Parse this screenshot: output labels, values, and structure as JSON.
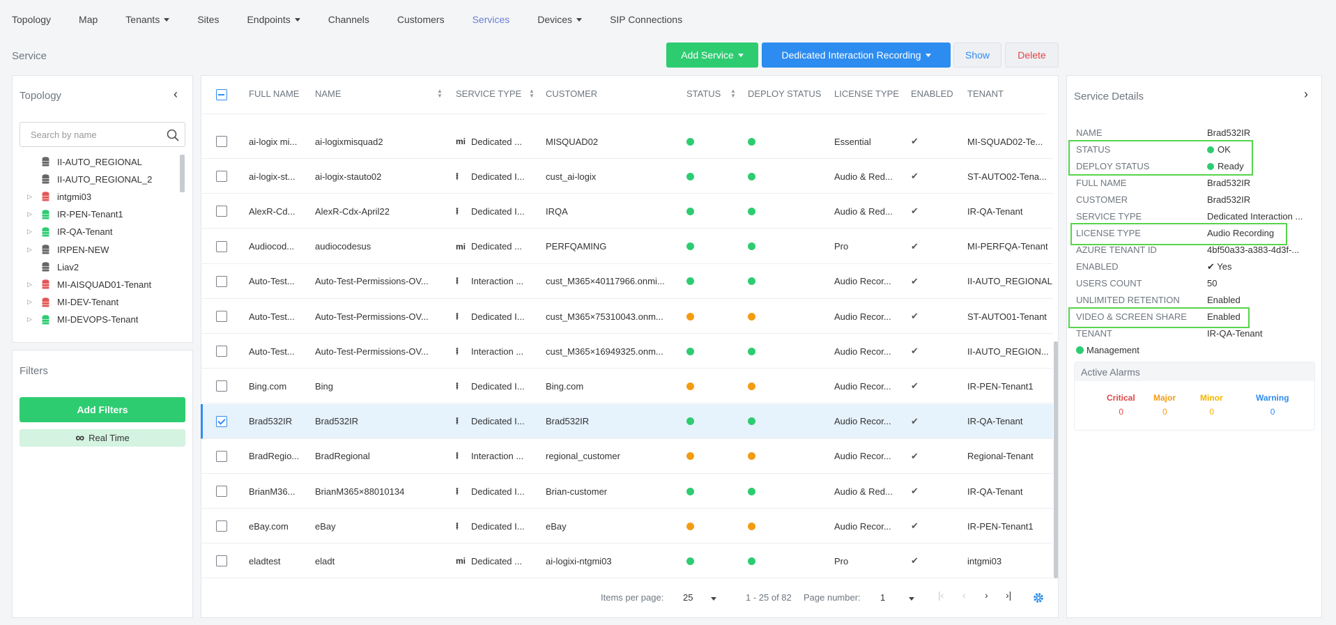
{
  "nav": {
    "items": [
      {
        "label": "Topology",
        "dropdown": false
      },
      {
        "label": "Map",
        "dropdown": false
      },
      {
        "label": "Tenants",
        "dropdown": true
      },
      {
        "label": "Sites",
        "dropdown": false
      },
      {
        "label": "Endpoints",
        "dropdown": true
      },
      {
        "label": "Channels",
        "dropdown": false
      },
      {
        "label": "Customers",
        "dropdown": false
      },
      {
        "label": "Services",
        "dropdown": false,
        "active": true
      },
      {
        "label": "Devices",
        "dropdown": true
      },
      {
        "label": "SIP Connections",
        "dropdown": false
      }
    ]
  },
  "page": {
    "title": "Service"
  },
  "toolbar": {
    "add_service": "Add Service",
    "interaction_recording": "Dedicated Interaction Recording",
    "show": "Show",
    "delete": "Delete"
  },
  "topology": {
    "title": "Topology",
    "search_placeholder": "Search by name",
    "items": [
      {
        "label": "II-AUTO_REGIONAL",
        "color": "#666666",
        "expandable": false
      },
      {
        "label": "II-AUTO_REGIONAL_2",
        "color": "#666666",
        "expandable": false
      },
      {
        "label": "intgmi03",
        "color": "#e45656",
        "expandable": true
      },
      {
        "label": "IR-PEN-Tenant1",
        "color": "#2ecc71",
        "expandable": true
      },
      {
        "label": "IR-QA-Tenant",
        "color": "#2ecc71",
        "expandable": true
      },
      {
        "label": "IRPEN-NEW",
        "color": "#666666",
        "expandable": true
      },
      {
        "label": "Liav2",
        "color": "#666666",
        "expandable": false
      },
      {
        "label": "MI-AISQUAD01-Tenant",
        "color": "#e45656",
        "expandable": true
      },
      {
        "label": "MI-DEV-Tenant",
        "color": "#e45656",
        "expandable": true
      },
      {
        "label": "MI-DEVOPS-Tenant",
        "color": "#2ecc71",
        "expandable": true
      }
    ]
  },
  "filters": {
    "title": "Filters",
    "add_filters": "Add Filters",
    "real_time": "Real Time"
  },
  "table": {
    "columns": [
      "FULL NAME",
      "NAME",
      "SERVICE TYPE",
      "CUSTOMER",
      "STATUS",
      "DEPLOY STATUS",
      "LICENSE TYPE",
      "ENABLED",
      "TENANT"
    ],
    "rows": [
      {
        "full_name": "ai-logix mi...",
        "name": "ai-logixmisquad2",
        "icon": "mi",
        "service_type": "Dedicated ...",
        "customer": "MISQUAD02",
        "status": "#2ecc71",
        "deploy": "#2ecc71",
        "license": "Essential",
        "enabled": "✔",
        "tenant": "MI-SQUAD02-Te...",
        "selected": false
      },
      {
        "full_name": "ai-logix-st...",
        "name": "ai-logix-stauto02",
        "icon": "wave",
        "service_type": "Dedicated I...",
        "customer": "cust_ai-logix",
        "status": "#2ecc71",
        "deploy": "#2ecc71",
        "license": "Audio & Red...",
        "enabled": "✔",
        "tenant": "ST-AUTO02-Tena...",
        "selected": false
      },
      {
        "full_name": "AlexR-Cd...",
        "name": "AlexR-Cdx-April22",
        "icon": "wave",
        "service_type": "Dedicated I...",
        "customer": "IRQA",
        "status": "#2ecc71",
        "deploy": "#2ecc71",
        "license": "Audio & Red...",
        "enabled": "✔",
        "tenant": "IR-QA-Tenant",
        "selected": false
      },
      {
        "full_name": "Audiocod...",
        "name": "audiocodesus",
        "icon": "mi",
        "service_type": "Dedicated ...",
        "customer": "PERFQAMING",
        "status": "#2ecc71",
        "deploy": "#2ecc71",
        "license": "Pro",
        "enabled": "✔",
        "tenant": "MI-PERFQA-Tenant",
        "selected": false
      },
      {
        "full_name": "Auto-Test...",
        "name": "Auto-Test-Permissions-OV...",
        "icon": "wave",
        "service_type": "Interaction ...",
        "customer": "cust_M365×40117966.onmi...",
        "status": "#2ecc71",
        "deploy": "#2ecc71",
        "license": "Audio Recor...",
        "enabled": "✔",
        "tenant": "II-AUTO_REGIONAL",
        "selected": false
      },
      {
        "full_name": "Auto-Test...",
        "name": "Auto-Test-Permissions-OV...",
        "icon": "wave",
        "service_type": "Dedicated I...",
        "customer": "cust_M365×75310043.onm...",
        "status": "#f39c12",
        "deploy": "#f39c12",
        "license": "Audio Recor...",
        "enabled": "✔",
        "tenant": "ST-AUTO01-Tenant",
        "selected": false
      },
      {
        "full_name": "Auto-Test...",
        "name": "Auto-Test-Permissions-OV...",
        "icon": "wave",
        "service_type": "Interaction ...",
        "customer": "cust_M365×16949325.onm...",
        "status": "#2ecc71",
        "deploy": "#2ecc71",
        "license": "Audio Recor...",
        "enabled": "✔",
        "tenant": "II-AUTO_REGION...",
        "selected": false
      },
      {
        "full_name": "Bing.com",
        "name": "Bing",
        "icon": "wave",
        "service_type": "Dedicated I...",
        "customer": "Bing.com",
        "status": "#f39c12",
        "deploy": "#f39c12",
        "license": "Audio Recor...",
        "enabled": "✔",
        "tenant": "IR-PEN-Tenant1",
        "selected": false
      },
      {
        "full_name": "Brad532IR",
        "name": "Brad532IR",
        "icon": "wave",
        "service_type": "Dedicated I...",
        "customer": "Brad532IR",
        "status": "#2ecc71",
        "deploy": "#2ecc71",
        "license": "Audio Recor...",
        "enabled": "✔",
        "tenant": "IR-QA-Tenant",
        "selected": true
      },
      {
        "full_name": "BradRegio...",
        "name": "BradRegional",
        "icon": "wave",
        "service_type": "Interaction ...",
        "customer": "regional_customer",
        "status": "#f39c12",
        "deploy": "#f39c12",
        "license": "Audio Recor...",
        "enabled": "✔",
        "tenant": "Regional-Tenant",
        "selected": false
      },
      {
        "full_name": "BrianM36...",
        "name": "BrianM365×88010134",
        "icon": "wave",
        "service_type": "Dedicated I...",
        "customer": "Brian-customer",
        "status": "#2ecc71",
        "deploy": "#2ecc71",
        "license": "Audio & Red...",
        "enabled": "✔",
        "tenant": "IR-QA-Tenant",
        "selected": false
      },
      {
        "full_name": "eBay.com",
        "name": "eBay",
        "icon": "wave",
        "service_type": "Dedicated I...",
        "customer": "eBay",
        "status": "#f39c12",
        "deploy": "#f39c12",
        "license": "Audio Recor...",
        "enabled": "✔",
        "tenant": "IR-PEN-Tenant1",
        "selected": false
      },
      {
        "full_name": "eladtest",
        "name": "eladt",
        "icon": "mi",
        "service_type": "Dedicated ...",
        "customer": "ai-logixi-ntgmi03",
        "status": "#2ecc71",
        "deploy": "#2ecc71",
        "license": "Pro",
        "enabled": "✔",
        "tenant": "intgmi03",
        "selected": false
      }
    ]
  },
  "pagination": {
    "items_per_page_label": "Items per page:",
    "items_per_page": "25",
    "range": "1 - 25 of 82",
    "page_number_label": "Page number:",
    "page_number": "1"
  },
  "details": {
    "title": "Service Details",
    "fields": [
      {
        "label": "NAME",
        "value": "Brad532IR"
      },
      {
        "label": "STATUS",
        "value": "OK",
        "dot": "#2ecc71"
      },
      {
        "label": "DEPLOY STATUS",
        "value": "Ready",
        "dot": "#2ecc71"
      },
      {
        "label": "FULL NAME",
        "value": "Brad532IR"
      },
      {
        "label": "CUSTOMER",
        "value": "Brad532IR"
      },
      {
        "label": "SERVICE TYPE",
        "value": "Dedicated Interaction ..."
      },
      {
        "label": "LICENSE TYPE",
        "value": "Audio Recording"
      },
      {
        "label": "AZURE TENANT ID",
        "value": "4bf50a33-a383-4d3f-..."
      },
      {
        "label": "ENABLED",
        "value": "✔ Yes"
      },
      {
        "label": "USERS COUNT",
        "value": "50"
      },
      {
        "label": "UNLIMITED RETENTION",
        "value": "Enabled"
      },
      {
        "label": "VIDEO & SCREEN SHARE",
        "value": "Enabled"
      },
      {
        "label": "TENANT",
        "value": "IR-QA-Tenant"
      }
    ],
    "management": "Management",
    "alarms_title": "Active Alarms",
    "alarms": [
      {
        "label": "Critical",
        "value": "0",
        "color": "#e04545"
      },
      {
        "label": "Major",
        "value": "0",
        "color": "#f39c12"
      },
      {
        "label": "Minor",
        "value": "0",
        "color": "#f1b400"
      },
      {
        "label": "Warning",
        "value": "0",
        "color": "#2d8cf0"
      }
    ]
  }
}
